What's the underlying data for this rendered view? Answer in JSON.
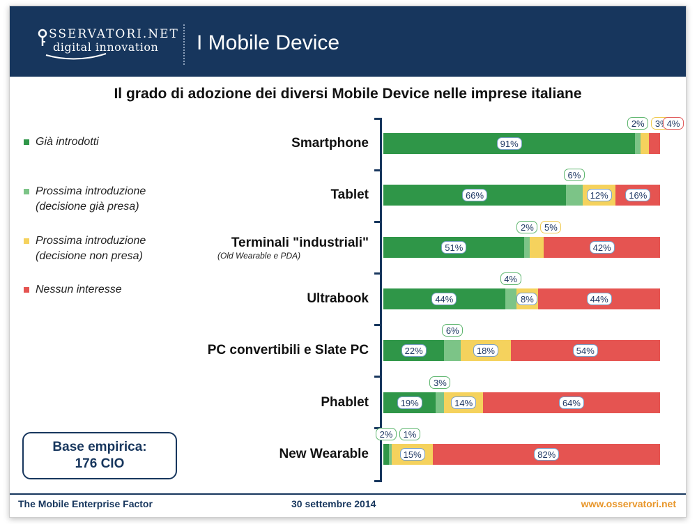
{
  "header": {
    "logo_line1": "SSERVATORI.NET",
    "logo_line2": "digital innovation",
    "title": "I Mobile Device"
  },
  "footer": {
    "left": "The Mobile Enterprise Factor",
    "center": "30 settembre 2014",
    "right": "www.osservatori.net"
  },
  "base_box": {
    "line1": "Base empirica:",
    "line2": "176 CIO"
  },
  "colors": {
    "header_bg": "#17365d",
    "already": "#2f9648",
    "next_decided": "#7cc487",
    "next_undecided": "#f5d25d",
    "no_interest": "#e55451"
  },
  "chart_data": {
    "type": "bar",
    "orientation": "horizontal-stacked-100",
    "title": "Il grado di adozione dei diversi Mobile Device nelle imprese italiane",
    "legend": [
      {
        "name": "Già introdotti",
        "color": "#2f9648",
        "lines": [
          "Già introdotti"
        ]
      },
      {
        "name": "Prossima introduzione (decisione già presa)",
        "color": "#7cc487",
        "lines": [
          "Prossima introduzione",
          "(decisione già presa)"
        ]
      },
      {
        "name": "Prossima introduzione (decisione non presa)",
        "color": "#f5d25d",
        "lines": [
          "Prossima introduzione",
          "(decisione non presa)"
        ]
      },
      {
        "name": "Nessun interesse",
        "color": "#e55451",
        "lines": [
          "Nessun interesse"
        ]
      }
    ],
    "categories": [
      {
        "name": "Smartphone",
        "sub": ""
      },
      {
        "name": "Tablet",
        "sub": ""
      },
      {
        "name": "Terminali \"industriali\"",
        "sub": "(Old Wearable e PDA)"
      },
      {
        "name": "Ultrabook",
        "sub": ""
      },
      {
        "name": "PC convertibili e Slate PC",
        "sub": ""
      },
      {
        "name": "Phablet",
        "sub": ""
      },
      {
        "name": "New Wearable",
        "sub": ""
      }
    ],
    "series": [
      {
        "name": "Già introdotti",
        "values": [
          91,
          66,
          51,
          44,
          22,
          19,
          2
        ]
      },
      {
        "name": "Prossima introduzione (decisione già presa)",
        "values": [
          2,
          6,
          2,
          4,
          6,
          3,
          1
        ]
      },
      {
        "name": "Prossima introduzione (decisione non presa)",
        "values": [
          3,
          12,
          5,
          8,
          18,
          14,
          15
        ]
      },
      {
        "name": "Nessun interesse",
        "values": [
          4,
          16,
          42,
          44,
          54,
          64,
          82
        ]
      }
    ],
    "data_labels": [
      [
        "91%",
        "2%",
        "3%",
        "4%"
      ],
      [
        "66%",
        "6%",
        "12%",
        "16%"
      ],
      [
        "51%",
        "2%",
        "5%",
        "42%"
      ],
      [
        "44%",
        "4%",
        "8%",
        "44%"
      ],
      [
        "22%",
        "6%",
        "18%",
        "54%"
      ],
      [
        "19%",
        "3%",
        "14%",
        "64%"
      ],
      [
        "2%",
        "1%",
        "15%",
        "82%"
      ]
    ],
    "xlim": [
      0,
      100
    ]
  }
}
